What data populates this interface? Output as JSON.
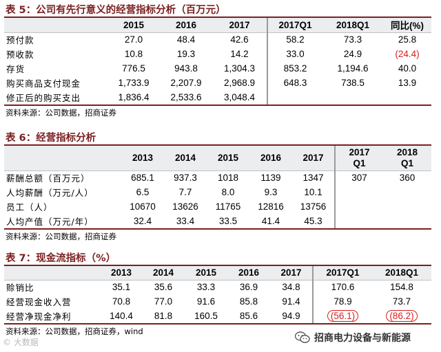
{
  "table5": {
    "title": "表 5：公司有先行意义的经营指标分析（百万元）",
    "headers": [
      "",
      "2015",
      "2016",
      "2017",
      "2017Q1",
      "2018Q1",
      "同比(%)"
    ],
    "rows": [
      {
        "label": "预付款",
        "values": [
          "27.0",
          "48.4",
          "42.6",
          "58.2",
          "73.3",
          "25.8"
        ]
      },
      {
        "label": "预收款",
        "values": [
          "10.8",
          "19.3",
          "14.2",
          "33.0",
          "24.9",
          "(24.4)"
        ]
      },
      {
        "label": "存货",
        "values": [
          "776.5",
          "943.8",
          "1,304.3",
          "853.2",
          "1,194.6",
          "40.0"
        ]
      },
      {
        "label": "购买商品支付现金",
        "values": [
          "1,733.9",
          "2,207.9",
          "2,968.9",
          "648.3",
          "738.5",
          "13.9"
        ]
      },
      {
        "label": "修正后的购买支出",
        "values": [
          "1,836.4",
          "2,533.6",
          "3,048.4",
          "",
          "",
          ""
        ]
      }
    ],
    "source": "资料来源：公司数据，招商证券"
  },
  "table6": {
    "title": "表 6：经营指标分析",
    "headers": [
      "",
      "2013",
      "2014",
      "2015",
      "2016",
      "2017",
      "2017\nQ1",
      "2018\nQ1"
    ],
    "rows": [
      {
        "label": "薪酬总额（百万元）",
        "values": [
          "685.1",
          "937.3",
          "1018",
          "1139",
          "1347",
          "307",
          "360"
        ]
      },
      {
        "label": "人均薪酬（万元/人）",
        "values": [
          "6.5",
          "7.7",
          "8.0",
          "9.3",
          "10.1",
          "",
          ""
        ]
      },
      {
        "label": "员工（人）",
        "values": [
          "10670",
          "13626",
          "11765",
          "12816",
          "13756",
          "",
          ""
        ]
      },
      {
        "label": "人均产值（万元/年）",
        "values": [
          "32.4",
          "33.4",
          "33.5",
          "41.4",
          "45.3",
          "",
          ""
        ]
      }
    ],
    "source": "资料来源：公司数据，招商证券"
  },
  "table7": {
    "title": "表 7：现金流指标（%）",
    "headers": [
      "",
      "2013",
      "2014",
      "2015",
      "2016",
      "2017",
      "2017Q1",
      "2018Q1"
    ],
    "rows": [
      {
        "label": "赊销比",
        "values": [
          "35.1",
          "35.6",
          "33.3",
          "36.9",
          "34.8",
          "170.6",
          "154.8"
        ]
      },
      {
        "label": "经营现金收入营",
        "values": [
          "70.8",
          "77.0",
          "91.6",
          "85.8",
          "91.4",
          "78.9",
          "73.7"
        ]
      },
      {
        "label": "经营净现金净利",
        "values": [
          "140.4",
          "81.8",
          "160.5",
          "85.6",
          "94.9",
          "(56.1)",
          "(86.2)"
        ]
      }
    ],
    "source": "资料来源：公司数据，招商证券，wind"
  },
  "watermark": "© 大数据",
  "wechat_label": "招商电力设备与新能源",
  "colors": {
    "accent": "#7a1f1f",
    "negative": "#d81e1e",
    "header_bg": "#ebedef"
  }
}
